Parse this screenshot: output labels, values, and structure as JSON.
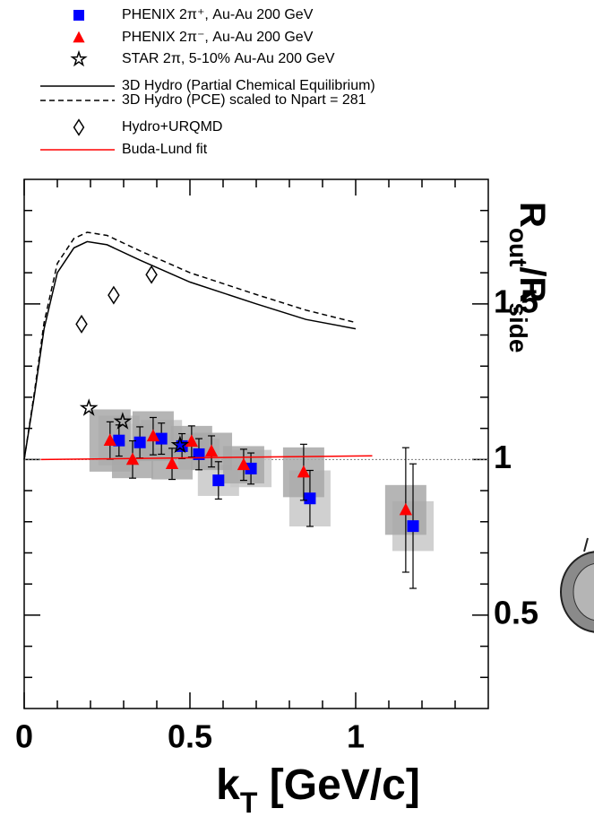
{
  "chart_data": {
    "type": "scatter",
    "xlabel": [
      "k",
      "T",
      " [GeV/c]"
    ],
    "ylabel": [
      "R",
      "out",
      "/R",
      "side"
    ],
    "xlim": [
      0,
      1.4
    ],
    "ylim": [
      0.2,
      1.9
    ],
    "xticks": [
      0,
      0.5,
      1
    ],
    "yticks": [
      0.5,
      1,
      1.5
    ],
    "x_minor_ticks": [
      0.1,
      0.2,
      0.3,
      0.4,
      0.6,
      0.7,
      0.8,
      0.9,
      1.1,
      1.2,
      1.3
    ],
    "y_minor_ticks": [
      0.3,
      0.4,
      0.6,
      0.7,
      0.8,
      0.9,
      1.1,
      1.2,
      1.3,
      1.4,
      1.6,
      1.7,
      1.8
    ],
    "reference_line": 1,
    "series": [
      {
        "name": "PHENIX 2π⁺, Au-Au 200 GeV",
        "kind": "points",
        "marker": "square",
        "color": "#0000ff",
        "sys_color": "#c8c8c8",
        "x": [
          0.286,
          0.349,
          0.414,
          0.476,
          0.527,
          0.586,
          0.684,
          0.862,
          1.173
        ],
        "values": [
          1.061,
          1.055,
          1.067,
          1.043,
          1.017,
          0.933,
          0.971,
          0.875,
          0.786
        ],
        "errors": [
          0.05,
          0.05,
          0.05,
          0.04,
          0.05,
          0.06,
          0.05,
          0.09,
          0.2
        ],
        "sys": [
          0.08,
          0.06,
          0.06,
          0.04,
          0.05,
          0.05,
          0.06,
          0.09,
          0.08
        ]
      },
      {
        "name": "PHENIX 2π⁻, Au-Au 200 GeV",
        "kind": "points",
        "marker": "triangle",
        "color": "#ff0000",
        "sys_color": "#a8a8a8",
        "x": [
          0.259,
          0.327,
          0.389,
          0.446,
          0.505,
          0.565,
          0.662,
          0.843,
          1.151
        ],
        "values": [
          1.061,
          1.0,
          1.075,
          0.986,
          1.058,
          1.026,
          0.983,
          0.959,
          0.838
        ],
        "errors": [
          0.06,
          0.06,
          0.06,
          0.05,
          0.05,
          0.05,
          0.05,
          0.09,
          0.2
        ],
        "sys": [
          0.1,
          0.06,
          0.08,
          0.05,
          0.05,
          0.06,
          0.06,
          0.08,
          0.08
        ]
      },
      {
        "name": "STAR 2π, 5-10% Au-Au 200 GeV",
        "kind": "points",
        "marker": "star",
        "color": "#000000",
        "x": [
          0.195,
          0.297,
          0.47
        ],
        "values": [
          1.165,
          1.122,
          1.046
        ]
      },
      {
        "name": "3D Hydro (Partial Chemical Equilibrium)",
        "kind": "line",
        "dash": false,
        "color": "#000000",
        "x": [
          0,
          0.03,
          0.06,
          0.1,
          0.15,
          0.19,
          0.25,
          0.35,
          0.5,
          0.7,
          0.85,
          1.0
        ],
        "values": [
          1.0,
          1.2,
          1.42,
          1.6,
          1.68,
          1.7,
          1.69,
          1.64,
          1.57,
          1.5,
          1.45,
          1.42
        ]
      },
      {
        "name": "3D Hydro (PCE) scaled to Npart = 281",
        "kind": "line",
        "dash": true,
        "color": "#000000",
        "x": [
          0,
          0.03,
          0.06,
          0.1,
          0.15,
          0.19,
          0.25,
          0.35,
          0.5,
          0.7,
          0.85,
          1.0
        ],
        "values": [
          1.0,
          1.21,
          1.44,
          1.63,
          1.71,
          1.73,
          1.72,
          1.67,
          1.6,
          1.53,
          1.48,
          1.44
        ]
      },
      {
        "name": "Hydro+URQMD",
        "kind": "points",
        "marker": "diamond",
        "color": "#000000",
        "x": [
          0.173,
          0.27,
          0.384
        ],
        "values": [
          1.435,
          1.528,
          1.594
        ]
      },
      {
        "name": "Buda-Lund fit",
        "kind": "line",
        "dash": false,
        "color": "#ff0000",
        "x": [
          0.05,
          1.05
        ],
        "values": [
          1.0,
          1.012
        ]
      }
    ]
  }
}
